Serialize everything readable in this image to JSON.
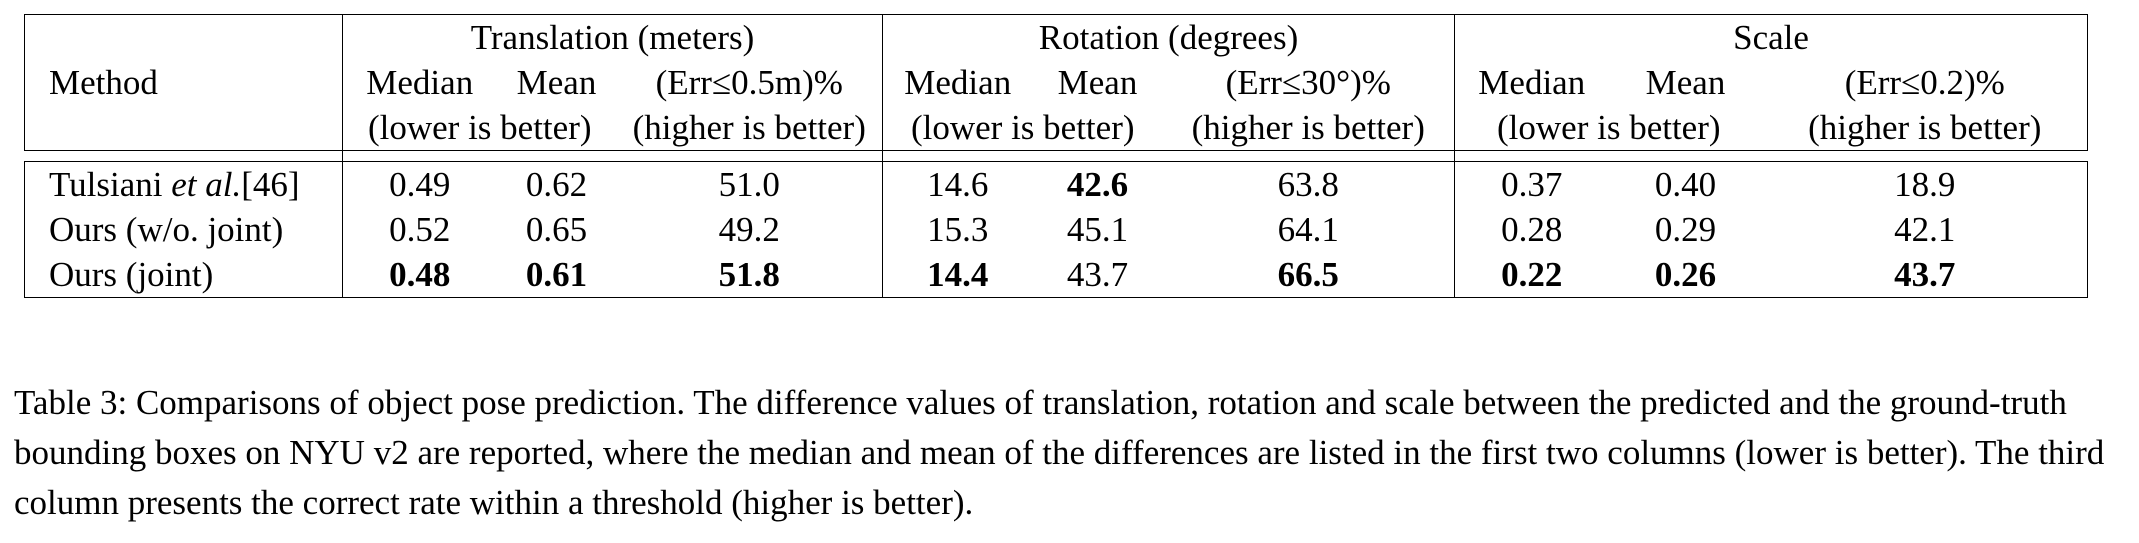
{
  "table": {
    "method_header": "Method",
    "groups": [
      {
        "title": "Translation (meters)",
        "col_labels": [
          "Median",
          "Mean",
          "(Err≤0.5m)%"
        ],
        "sub_labels": [
          "(lower is better)",
          "(higher is better)"
        ]
      },
      {
        "title": "Rotation (degrees)",
        "col_labels": [
          "Median",
          "Mean",
          "(Err≤30°)%"
        ],
        "sub_labels": [
          "(lower is better)",
          "(higher is better)"
        ]
      },
      {
        "title": "Scale",
        "col_labels": [
          "Median",
          "Mean",
          "(Err≤0.2)%"
        ],
        "sub_labels": [
          "(lower is better)",
          "(higher is better)"
        ]
      }
    ],
    "rows": [
      {
        "method_prefix": "Tulsiani ",
        "method_italic": "et al.",
        "method_suffix": "[46]",
        "values": [
          "0.49",
          "0.62",
          "51.0",
          "14.6",
          "42.6",
          "63.8",
          "0.37",
          "0.40",
          "18.9"
        ]
      },
      {
        "method": "Ours (w/o. joint)",
        "values": [
          "0.52",
          "0.65",
          "49.2",
          "15.3",
          "45.1",
          "64.1",
          "0.28",
          "0.29",
          "42.1"
        ]
      },
      {
        "method": "Ours (joint)",
        "values": [
          "0.48",
          "0.61",
          "51.8",
          "14.4",
          "43.7",
          "66.5",
          "0.22",
          "0.26",
          "43.7"
        ]
      }
    ],
    "bold_cells": [
      [
        0,
        4
      ],
      [
        2,
        0
      ],
      [
        2,
        1
      ],
      [
        2,
        2
      ],
      [
        2,
        3
      ],
      [
        2,
        5
      ],
      [
        2,
        6
      ],
      [
        2,
        7
      ],
      [
        2,
        8
      ]
    ]
  },
  "caption": "Table 3: Comparisons of object pose prediction. The difference values of translation, rotation and scale between the predicted and the ground-truth bounding boxes on NYU v2 are reported, where the median and mean of the differences are listed in the first two columns (lower is better). The third column presents the correct rate within a threshold (higher is better)."
}
